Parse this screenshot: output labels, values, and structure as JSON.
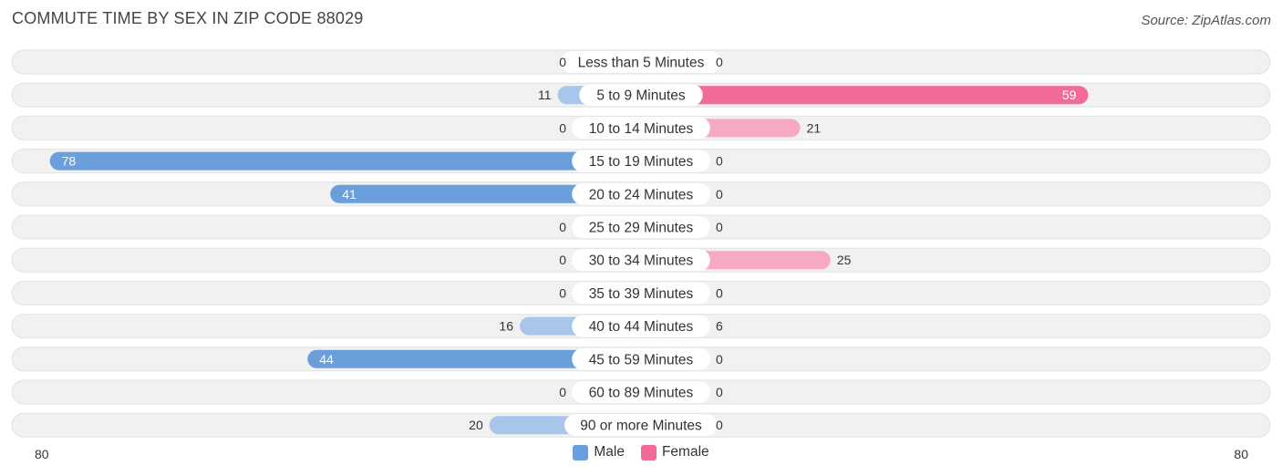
{
  "header": {
    "title": "COMMUTE TIME BY SEX IN ZIP CODE 88029",
    "source": "Source: ZipAtlas.com"
  },
  "colors": {
    "male_strong": "#6a9fdc",
    "male_light": "#a8c6ea",
    "female_strong": "#f26a96",
    "female_light": "#f7a9c3",
    "track": "#efefef"
  },
  "chart_data": {
    "type": "bar",
    "orientation": "horizontal-diverging",
    "categories": [
      "Less than 5 Minutes",
      "5 to 9 Minutes",
      "10 to 14 Minutes",
      "15 to 19 Minutes",
      "20 to 24 Minutes",
      "25 to 29 Minutes",
      "30 to 34 Minutes",
      "35 to 39 Minutes",
      "40 to 44 Minutes",
      "45 to 59 Minutes",
      "60 to 89 Minutes",
      "90 or more Minutes"
    ],
    "series": [
      {
        "name": "Male",
        "values": [
          0,
          11,
          0,
          78,
          41,
          0,
          0,
          0,
          16,
          44,
          0,
          20
        ]
      },
      {
        "name": "Female",
        "values": [
          0,
          59,
          21,
          0,
          0,
          0,
          25,
          0,
          6,
          0,
          0,
          0
        ]
      }
    ],
    "axis": {
      "left_label": "80",
      "right_label": "80",
      "max": 80
    },
    "legend": {
      "placement": "bottom-center",
      "entries": [
        "Male",
        "Female"
      ]
    }
  }
}
